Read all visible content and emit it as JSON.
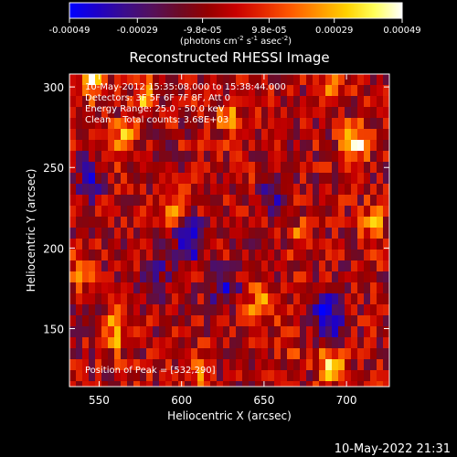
{
  "colorbar": {
    "ticks": [
      "-0.00049",
      "-0.00029",
      "-9.8e-05",
      "9.8e-05",
      "0.00029",
      "0.00049"
    ],
    "tick_values": [
      -0.00049,
      -0.00029,
      -9.8e-05,
      9.8e-05,
      0.00029,
      0.00049
    ],
    "range": [
      -0.00049,
      0.00049
    ],
    "label_pre": "(photons cm",
    "label_exp1": "-2",
    "label_mid": " s",
    "label_exp2": "-1",
    "label_post": " asec",
    "label_exp3": "-2",
    "label_close": ")",
    "stops": [
      "#0000ff",
      "#1e00c8",
      "#3b0d8c",
      "#55105a",
      "#6e0a24",
      "#960000",
      "#c80000",
      "#e62800",
      "#ff5a00",
      "#ff9600",
      "#ffd200",
      "#ffff5a",
      "#ffffff"
    ]
  },
  "chart_data": {
    "type": "heatmap",
    "title": "Reconstructed RHESSI Image",
    "xlabel": "Heliocentric X (arcsec)",
    "ylabel": "Heliocentric Y (arcsec)",
    "xlim": [
      532,
      726
    ],
    "ylim": [
      114,
      308
    ],
    "xticks": [
      "550",
      "600",
      "650",
      "700"
    ],
    "xtick_values": [
      550,
      600,
      650,
      700
    ],
    "yticks": [
      "150",
      "200",
      "250",
      "300"
    ],
    "ytick_values": [
      150,
      200,
      250,
      300
    ],
    "annotations": [
      "10-May-2012 15:35:08.000 to 15:38:44.000",
      "Detectors: 3F 5F 6F 7F 8F, Att 0",
      "Energy Range: 25.0 - 50.0 keV",
      "Clean    Total counts: 3.68E+03"
    ],
    "peak_label": "Position of Peak = [532,290]",
    "peak": [
      532,
      290
    ],
    "grid": false,
    "hot_spots": [
      {
        "x": 705,
        "y": 264,
        "value": 0.00049
      },
      {
        "x": 690,
        "y": 128,
        "value": 0.00045
      },
      {
        "x": 546,
        "y": 305,
        "value": 0.0004
      },
      {
        "x": 565,
        "y": 267,
        "value": 0.00034
      },
      {
        "x": 578,
        "y": 294,
        "value": 0.00034
      },
      {
        "x": 716,
        "y": 214,
        "value": 0.00032
      },
      {
        "x": 560,
        "y": 148,
        "value": 0.00031
      },
      {
        "x": 610,
        "y": 125,
        "value": 0.0003
      },
      {
        "x": 647,
        "y": 165,
        "value": 0.0003
      },
      {
        "x": 596,
        "y": 226,
        "value": 0.00024
      },
      {
        "x": 628,
        "y": 282,
        "value": 0.00022
      },
      {
        "x": 672,
        "y": 204,
        "value": 0.00022
      },
      {
        "x": 636,
        "y": 249,
        "value": 0.00014
      },
      {
        "x": 540,
        "y": 188,
        "value": 0.00022
      },
      {
        "x": 690,
        "y": 300,
        "value": 0.00022
      },
      {
        "x": 665,
        "y": 144,
        "value": 0.00018
      }
    ],
    "cold_spots": [
      {
        "x": 688,
        "y": 157,
        "value": -0.00042
      },
      {
        "x": 605,
        "y": 205,
        "value": -0.00035
      },
      {
        "x": 545,
        "y": 243,
        "value": -0.00022
      },
      {
        "x": 626,
        "y": 174,
        "value": -0.00024
      },
      {
        "x": 655,
        "y": 236,
        "value": -0.00024
      },
      {
        "x": 585,
        "y": 182,
        "value": -0.0002
      }
    ]
  },
  "footer": {
    "timestamp": "10-May-2022 21:31"
  }
}
